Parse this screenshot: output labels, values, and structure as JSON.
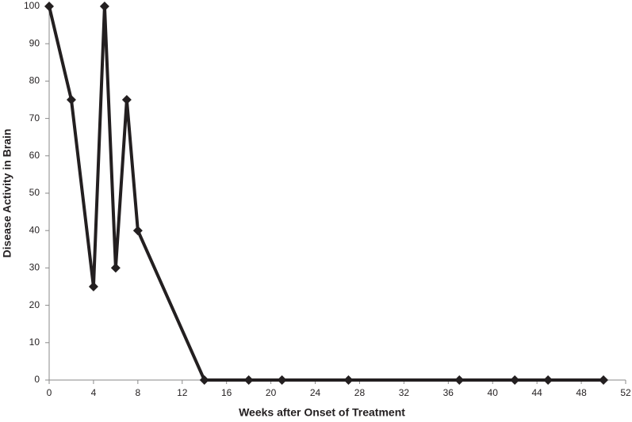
{
  "chart_data": {
    "type": "line",
    "x_label": "Weeks after Onset of Treatment",
    "y_label": "Disease Activity in Brain",
    "x": [
      0,
      2,
      4,
      5,
      6,
      7,
      8,
      14,
      18,
      21,
      27,
      37,
      42,
      45,
      50
    ],
    "series": [
      {
        "name": "Disease Activity",
        "color": "#231f20",
        "values": [
          100,
          75,
          25,
          100,
          30,
          75,
          40,
          0,
          0,
          0,
          0,
          0,
          0,
          0,
          0
        ]
      }
    ],
    "xlim": [
      0,
      52
    ],
    "xticks": [
      0,
      4,
      8,
      12,
      16,
      20,
      24,
      28,
      32,
      36,
      40,
      44,
      48,
      52
    ],
    "ylim": [
      0,
      100
    ],
    "yticks": [
      0,
      10,
      20,
      30,
      40,
      50,
      60,
      70,
      80,
      90,
      100
    ],
    "grid": false
  }
}
